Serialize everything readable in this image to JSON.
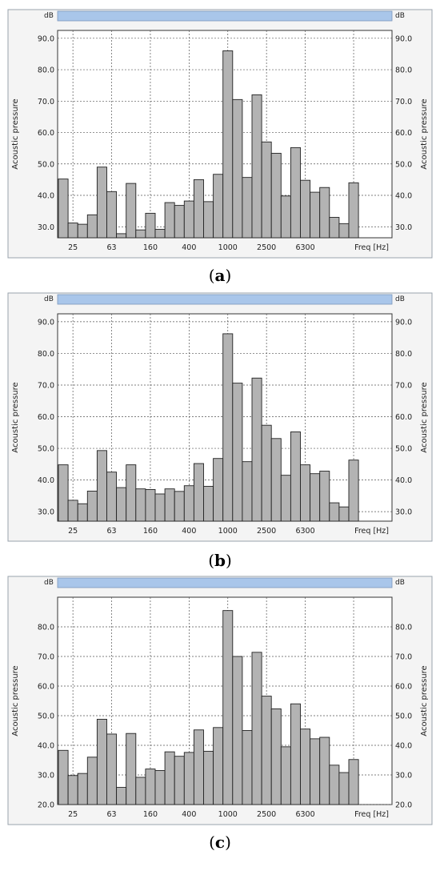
{
  "panels": [
    {
      "caption": "a",
      "chart_data": {
        "type": "bar",
        "title": "",
        "unit_label": "dB",
        "ylabel": "Acoustic pressure",
        "xlabel": "Freq [Hz]",
        "x_tick_labels": [
          "25",
          "63",
          "160",
          "400",
          "1000",
          "2500",
          "6300"
        ],
        "y_ticks": [
          30,
          40,
          50,
          60,
          70,
          80,
          90
        ],
        "y_tick_labels": [
          "30.0",
          "40.0",
          "50.0",
          "60.0",
          "70.0",
          "80.0",
          "90.0"
        ],
        "ylim": [
          26.5,
          92.5
        ],
        "grid": true,
        "values": [
          45.2,
          31.2,
          30.8,
          33.8,
          49.0,
          41.2,
          27.8,
          43.8,
          29.0,
          34.3,
          29.2,
          37.7,
          36.8,
          38.2,
          45.0,
          38.0,
          46.7,
          86.0,
          70.5,
          45.7,
          72.0,
          57.0,
          53.4,
          39.8,
          55.2,
          44.8,
          41.0,
          42.5,
          33.0,
          31.0,
          44.0
        ]
      }
    },
    {
      "caption": "b",
      "chart_data": {
        "type": "bar",
        "title": "",
        "unit_label": "dB",
        "ylabel": "Acoustic pressure",
        "xlabel": "Freq [Hz]",
        "x_tick_labels": [
          "25",
          "63",
          "160",
          "400",
          "1000",
          "2500",
          "6300"
        ],
        "y_ticks": [
          30,
          40,
          50,
          60,
          70,
          80,
          90
        ],
        "y_tick_labels": [
          "30.0",
          "40.0",
          "50.0",
          "60.0",
          "70.0",
          "80.0",
          "90.0"
        ],
        "ylim": [
          27,
          92.5
        ],
        "grid": true,
        "values": [
          44.8,
          33.6,
          32.5,
          36.5,
          49.3,
          42.5,
          37.6,
          44.8,
          37.2,
          37.0,
          35.6,
          37.2,
          36.4,
          38.2,
          45.2,
          38.0,
          46.8,
          86.2,
          70.6,
          45.8,
          72.2,
          57.3,
          53.1,
          41.5,
          55.2,
          44.8,
          42.0,
          42.8,
          32.8,
          31.5,
          46.3
        ]
      }
    },
    {
      "caption": "c",
      "chart_data": {
        "type": "bar",
        "title": "",
        "unit_label": "dB",
        "ylabel": "Acoustic pressure",
        "xlabel": "Freq [Hz]",
        "x_tick_labels": [
          "25",
          "63",
          "160",
          "400",
          "1000",
          "2500",
          "6300"
        ],
        "y_ticks": [
          20,
          30,
          40,
          50,
          60,
          70,
          80
        ],
        "y_tick_labels": [
          "20.0",
          "30.0",
          "40.0",
          "50.0",
          "60.0",
          "70.0",
          "80.0"
        ],
        "ylim": [
          20,
          90
        ],
        "grid": true,
        "values": [
          38.3,
          29.8,
          30.5,
          36.0,
          48.8,
          43.8,
          25.8,
          44.0,
          29.2,
          32.0,
          31.5,
          37.8,
          36.3,
          37.6,
          45.2,
          38.0,
          46.0,
          85.5,
          70.0,
          45.0,
          71.4,
          56.6,
          52.3,
          39.5,
          54.0,
          45.5,
          42.2,
          42.7,
          33.3,
          30.8,
          35.2
        ]
      }
    }
  ]
}
